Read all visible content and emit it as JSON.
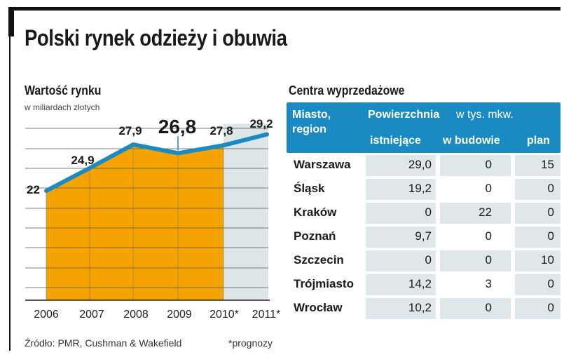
{
  "title": "Polski rynek odzieży i obuwia",
  "chart": {
    "title": "Wartość rynku",
    "subtitle": "w miliardach złotych"
  },
  "chart_data": {
    "type": "area",
    "title": "Wartość rynku",
    "ylabel": "w miliardach złotych",
    "categories": [
      "2006",
      "2007",
      "2008",
      "2009",
      "2010*",
      "2011*"
    ],
    "values": [
      22,
      24.9,
      27.9,
      26.8,
      27.8,
      29.2
    ],
    "labels": [
      "22",
      "24,9",
      "27,9",
      "26,8",
      "27,8",
      "29,2"
    ],
    "forecast_from_index": 4,
    "highlight_index": 3,
    "ylim": [
      16,
      30
    ],
    "colors": {
      "actual": "#f5a300",
      "forecast": "#dde5e8",
      "line": "#1b8ac2",
      "grid": "#555555"
    }
  },
  "source": "Źródło: PMR, Cushman & Wakefield",
  "footnote": "*prognozy",
  "table": {
    "title": "Centra wyprzedażowe",
    "header": {
      "city_line1": "Miasto,",
      "city_line2": "region",
      "group_bold": "Powierzchnia",
      "group_light": "w tys. mkw.",
      "col_existing": "istniejące",
      "col_building": "w budowie",
      "col_plan": "plan"
    },
    "rows": [
      {
        "city": "Warszawa",
        "existing": "29,0",
        "building": "0",
        "plan": "15"
      },
      {
        "city": "Śląsk",
        "existing": "19,2",
        "building": "0",
        "plan": "0"
      },
      {
        "city": "Kraków",
        "existing": "0",
        "building": "22",
        "plan": "0"
      },
      {
        "city": "Poznań",
        "existing": "9,7",
        "building": "0",
        "plan": "0"
      },
      {
        "city": "Szczecin",
        "existing": "0",
        "building": "0",
        "plan": "10"
      },
      {
        "city": "Trójmiasto",
        "existing": "14,2",
        "building": "3",
        "plan": "0"
      },
      {
        "city": "Wrocław",
        "existing": "10,2",
        "building": "0",
        "plan": "0"
      }
    ],
    "header_color": "#1b8ac2",
    "cell_color": "#dfe7ea"
  }
}
